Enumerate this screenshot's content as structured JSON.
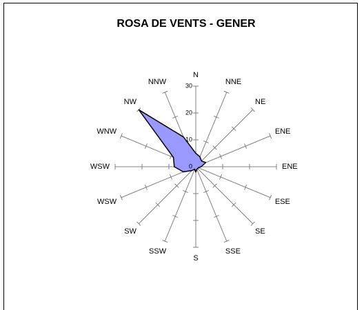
{
  "chart_data": {
    "type": "radar",
    "title": "ROSA DE VENTS - GENER",
    "categories": [
      "N",
      "NNE",
      "NE",
      "ENE",
      "ENE",
      "ESE",
      "SE",
      "SSE",
      "S",
      "SSW",
      "SW",
      "WSW",
      "WSW",
      "WNW",
      "NW",
      "NNW"
    ],
    "values": [
      5,
      4,
      3,
      4,
      2,
      1,
      1,
      1,
      2,
      1,
      2,
      5,
      8,
      9,
      30,
      12
    ],
    "color": "#9999ff",
    "rlim": [
      0,
      30
    ],
    "rticks": [
      0,
      10,
      20,
      30
    ]
  }
}
